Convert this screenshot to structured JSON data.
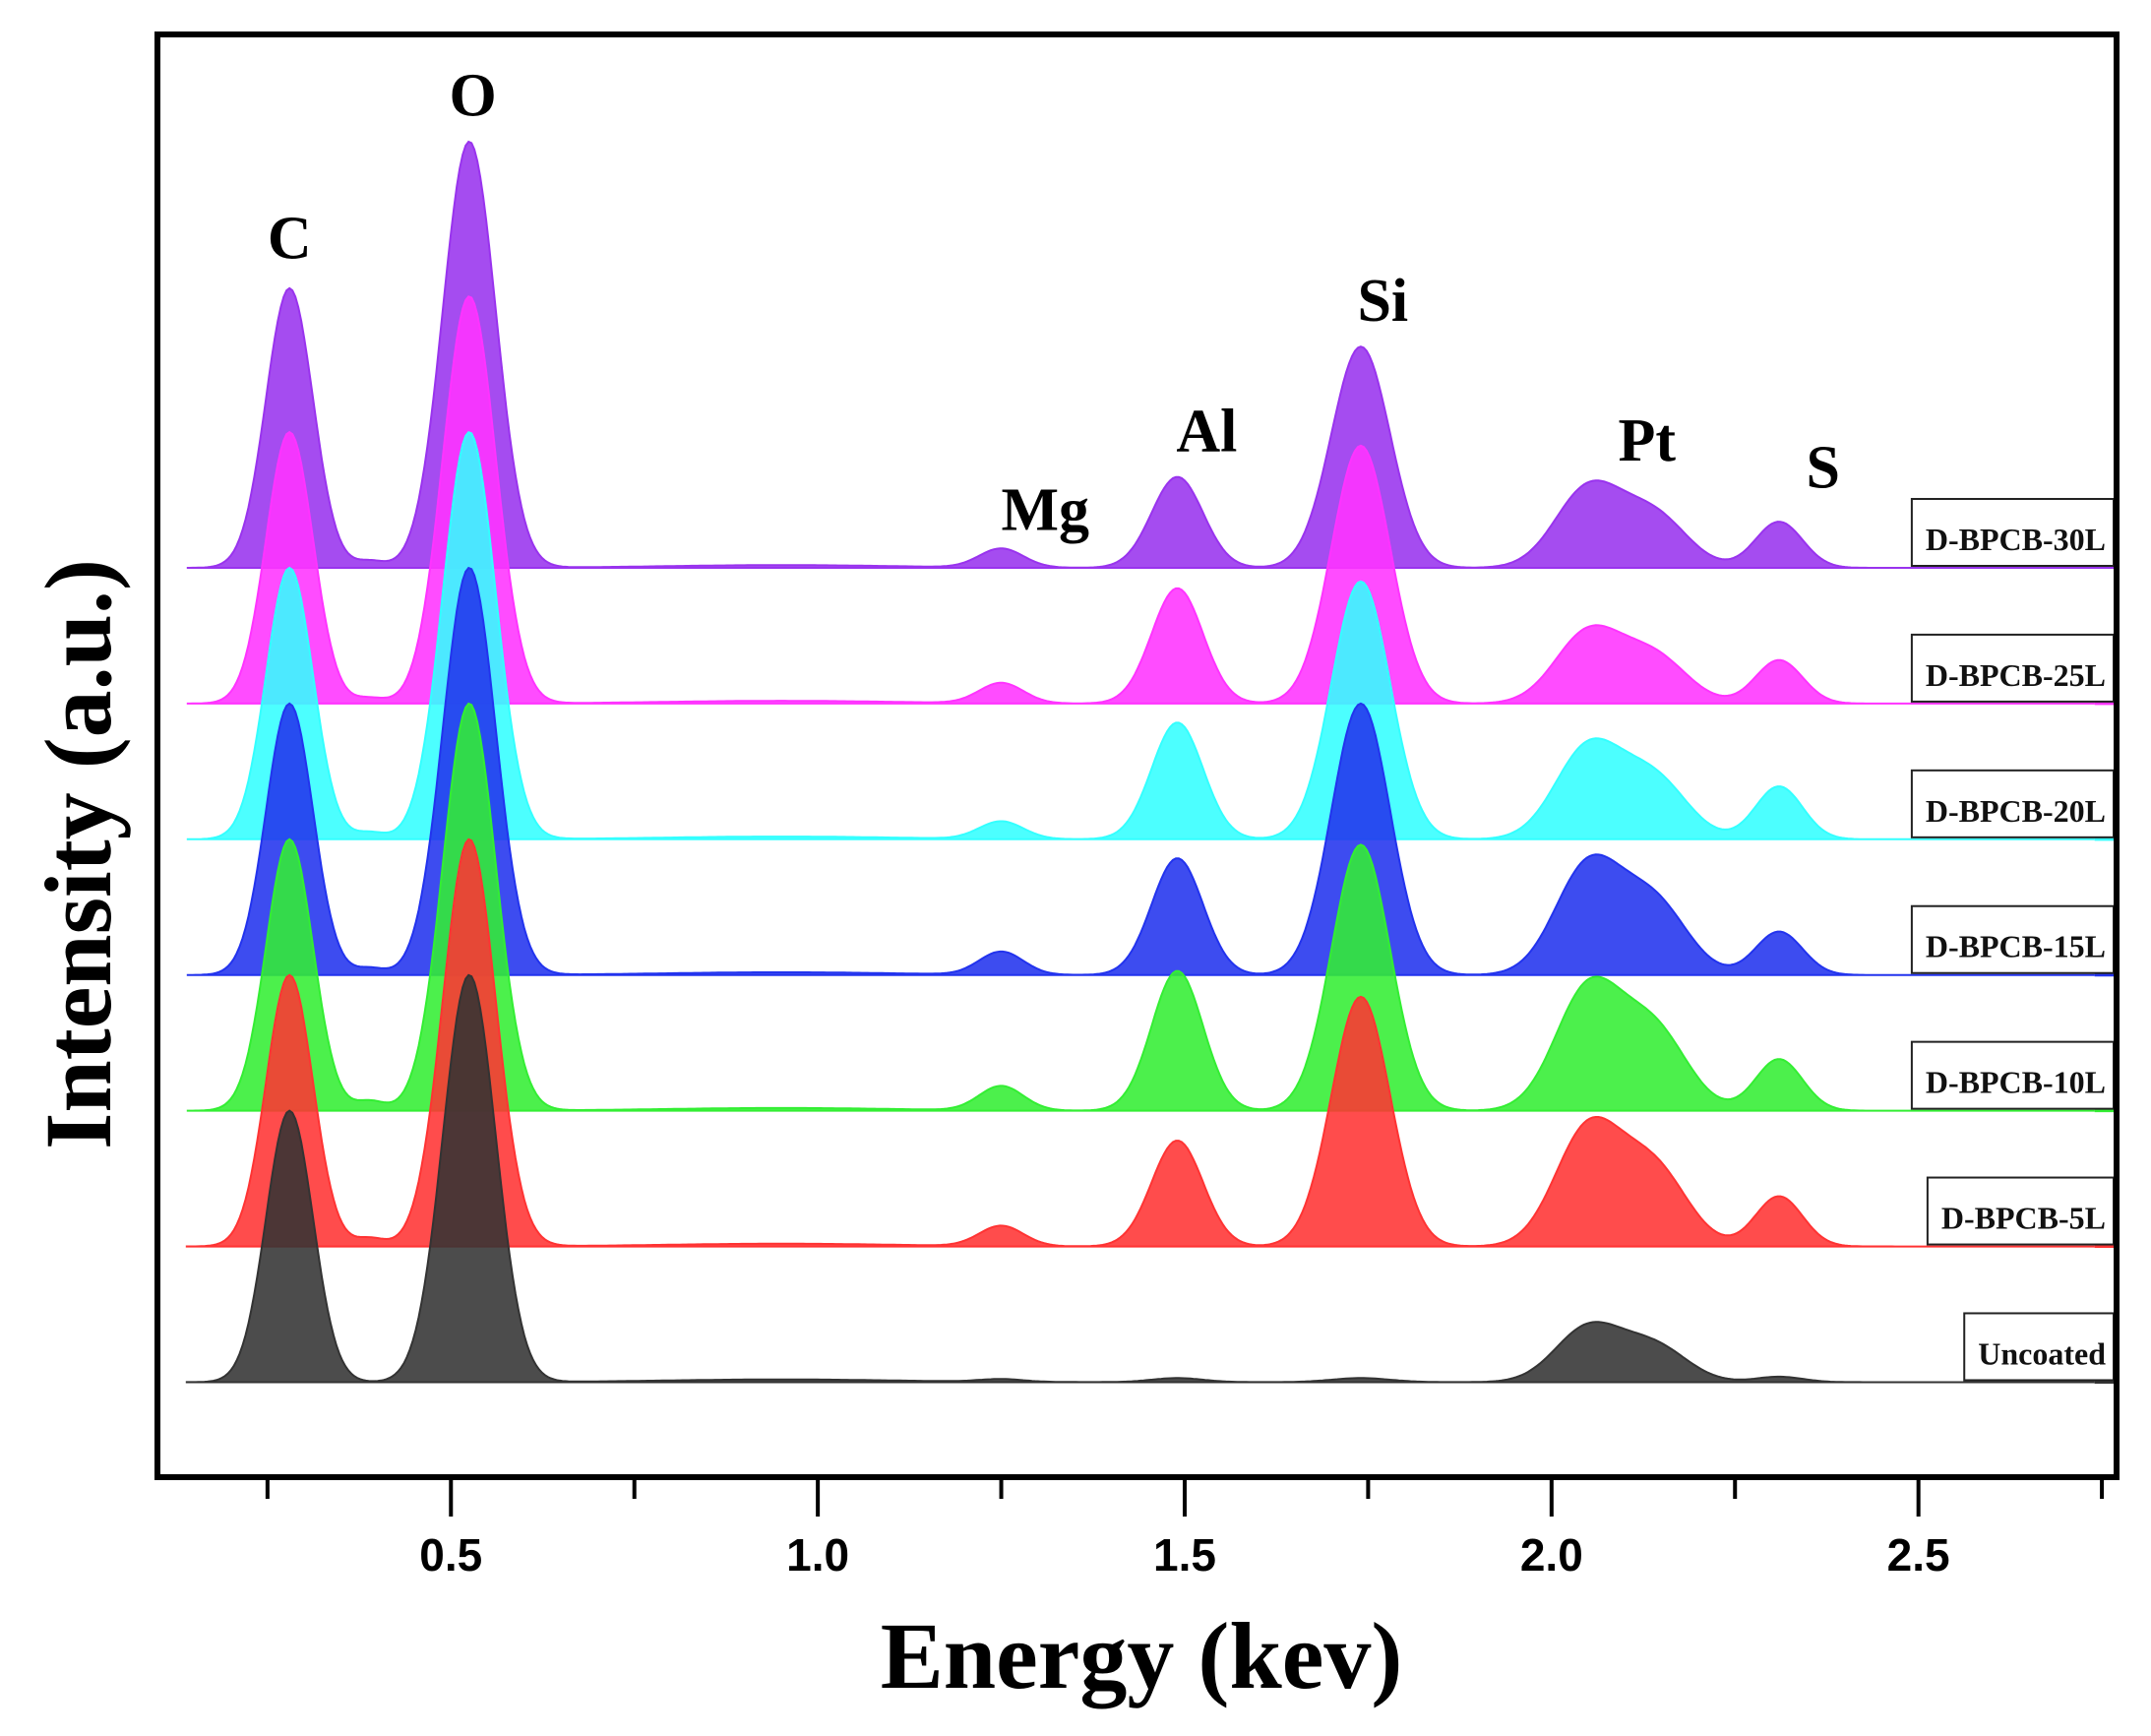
{
  "chart_data": {
    "type": "area",
    "title": "",
    "xlabel": "Energy (kev)",
    "ylabel": "Intensity (a.u.)",
    "xlim": [
      0.1,
      2.77
    ],
    "ylim": [
      -0.7,
      9.93
    ],
    "x_major_ticks": [
      0.5,
      1.0,
      1.5,
      2.0,
      2.5
    ],
    "x_tick_labels": [
      "0.5",
      "1.0",
      "1.5",
      "2.0",
      "2.5"
    ],
    "x_minor_ticks": [
      0.25,
      0.75,
      1.25,
      1.75,
      2.25,
      2.75
    ],
    "grid": false,
    "legend_placement": "right, one label per trace",
    "peak_labels": [
      {
        "label": "C",
        "energy": 0.28,
        "y": 8.44
      },
      {
        "label": "O",
        "energy": 0.53,
        "y": 9.49
      },
      {
        "label": "Mg",
        "energy": 1.31,
        "y": 6.44
      },
      {
        "label": "Al",
        "energy": 1.53,
        "y": 7.02
      },
      {
        "label": "Si",
        "energy": 1.77,
        "y": 7.98
      },
      {
        "label": "Pt",
        "energy": 2.13,
        "y": 6.95
      },
      {
        "label": "S",
        "energy": 2.37,
        "y": 6.75
      }
    ],
    "series": [
      {
        "name": "D-BPCB-30L",
        "color": "#9933ee",
        "offset": 6,
        "peaks": {
          "C": 2.06,
          "N": 0.05,
          "O": 3.14,
          "Mg": 0.14,
          "Al": 0.67,
          "Si": 1.63,
          "Pt": 0.58,
          "S": 0.34
        }
      },
      {
        "name": "D-BPCB-25L",
        "color": "#ff33ff",
        "offset": 5,
        "peaks": {
          "C": 2.0,
          "N": 0.04,
          "O": 3.0,
          "Mg": 0.15,
          "Al": 0.85,
          "Si": 1.9,
          "Pt": 0.52,
          "S": 0.32
        }
      },
      {
        "name": "D-BPCB-20L",
        "color": "#33ffff",
        "offset": 4,
        "peaks": {
          "C": 2.0,
          "N": 0.05,
          "O": 3.0,
          "Mg": 0.13,
          "Al": 0.86,
          "Si": 1.9,
          "Pt": 0.67,
          "S": 0.39
        }
      },
      {
        "name": "D-BPCB-15L",
        "color": "#2233ee",
        "offset": 3,
        "peaks": {
          "C": 2.0,
          "N": 0.05,
          "O": 3.0,
          "Mg": 0.17,
          "Al": 0.86,
          "Si": 2.0,
          "Pt": 0.8,
          "S": 0.32
        }
      },
      {
        "name": "D-BPCB-10L",
        "color": "#33ee33",
        "offset": 2,
        "peaks": {
          "C": 2.0,
          "N": 0.07,
          "O": 3.0,
          "Mg": 0.18,
          "Al": 1.03,
          "Si": 1.96,
          "Pt": 0.89,
          "S": 0.38
        }
      },
      {
        "name": "D-BPCB-5L",
        "color": "#ff3333",
        "offset": 1,
        "peaks": {
          "C": 2.0,
          "N": 0.06,
          "O": 3.0,
          "Mg": 0.15,
          "Al": 0.78,
          "Si": 1.84,
          "Pt": 0.86,
          "S": 0.37
        }
      },
      {
        "name": "Uncoated",
        "color": "#333333",
        "offset": 0,
        "peaks": {
          "C": 2.0,
          "N": 0.0,
          "O": 3.0,
          "Mg": 0.02,
          "Al": 0.03,
          "Si": 0.03,
          "Pt": 0.4,
          "S": 0.04
        }
      }
    ],
    "peak_energies": {
      "C": 0.28,
      "N": 0.39,
      "O": 0.525,
      "Mg": 1.25,
      "Al": 1.49,
      "Si": 1.74,
      "Pt": 2.05,
      "S": 2.31
    }
  }
}
